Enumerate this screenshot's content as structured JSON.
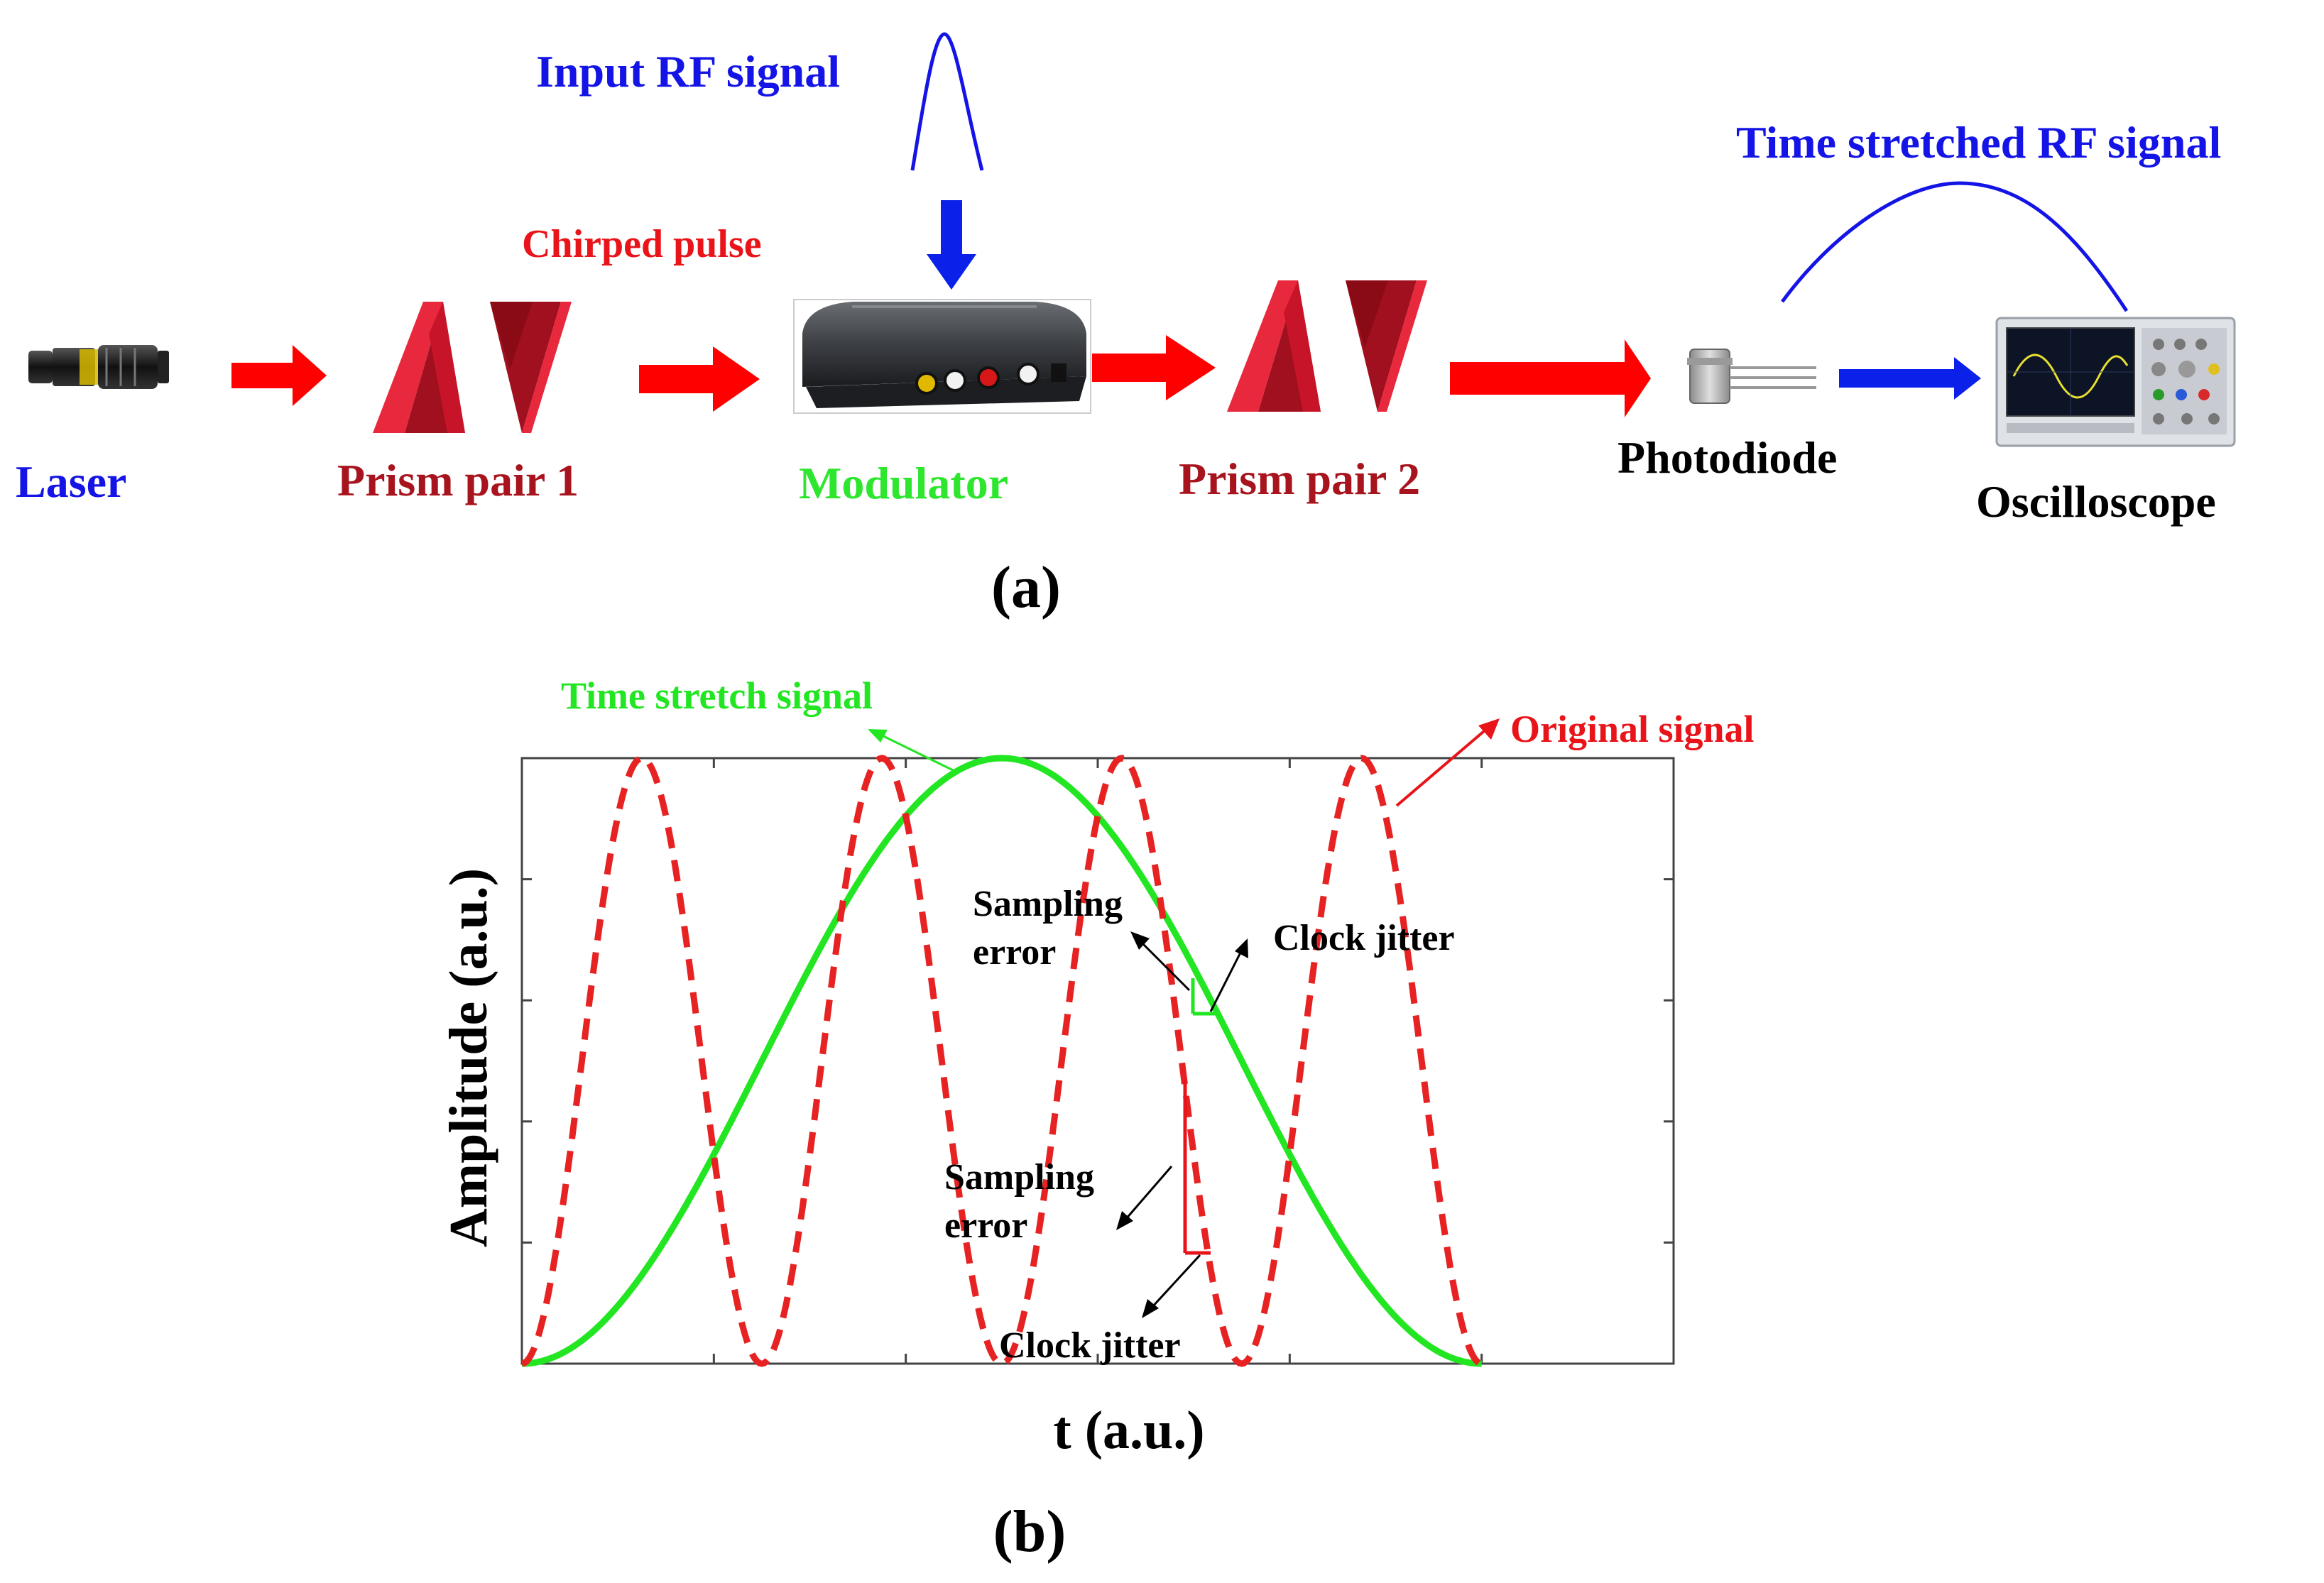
{
  "panel_a": {
    "labels": {
      "input_rf": "Input RF signal",
      "chirped": "Chirped pulse",
      "time_stretched_rf": "Time stretched RF signal",
      "laser": "Laser",
      "prism1": "Prism pair 1",
      "modulator": "Modulator",
      "prism2": "Prism pair 2",
      "photodiode": "Photodiode",
      "oscilloscope": "Oscilloscope",
      "caption": "(a)"
    },
    "colors": {
      "blue_text": "#1414e6",
      "red_text": "#e8141a",
      "darkred_text": "#a8141e",
      "green_text": "#2ee62e",
      "black_text": "#000000",
      "red_arrow": "#ff0000",
      "blue_arrow": "#0b20e8",
      "prism_light": "#e8283c",
      "prism_dark": "#a0101e"
    }
  },
  "panel_b": {
    "labels": {
      "caption": "(b)",
      "green_callout": "Time stretch signal",
      "red_callout": "Original signal",
      "sampling_error_1a": "Sampling",
      "sampling_error_1b": "error",
      "clock_jitter_1": "Clock jitter",
      "sampling_error_2a": "Sampling",
      "sampling_error_2b": "error",
      "clock_jitter_2": "Clock jitter"
    },
    "chart_data": {
      "type": "line",
      "xlabel": "t (a.u.)",
      "ylabel": "Amplitude  (a.u.)",
      "xlim": [
        0,
        1.2
      ],
      "ylim": [
        0,
        1
      ],
      "grid": false,
      "x_tick_positions": [
        0,
        0.2,
        0.4,
        0.6,
        0.8,
        1.0,
        1.2
      ],
      "y_tick_positions": [
        0,
        0.2,
        0.4,
        0.6,
        0.8,
        1.0
      ],
      "series": [
        {
          "name": "Time stretch signal",
          "style": "solid",
          "color": "#22e622",
          "function": "0.5*(1-cos(2*pi*x))",
          "x": [
            0,
            0.1,
            0.2,
            0.3,
            0.4,
            0.5,
            0.6,
            0.7,
            0.8,
            0.9,
            1.0
          ],
          "values": [
            0,
            0.095,
            0.345,
            0.655,
            0.905,
            1,
            0.905,
            0.655,
            0.345,
            0.095,
            0
          ]
        },
        {
          "name": "Original signal",
          "style": "dashed",
          "color": "#e62222",
          "function": "0.5*(1-cos(8*pi*x))",
          "x": [
            0,
            0.125,
            0.25,
            0.375,
            0.5,
            0.625,
            0.75,
            0.875,
            1.0
          ],
          "values": [
            0,
            1,
            0,
            1,
            0,
            1,
            0,
            1,
            0
          ]
        }
      ]
    }
  }
}
